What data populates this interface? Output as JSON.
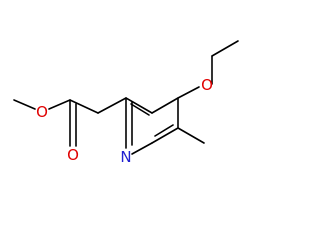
{
  "atom_labels": [
    "O",
    "O",
    "N",
    "O"
  ]
}
